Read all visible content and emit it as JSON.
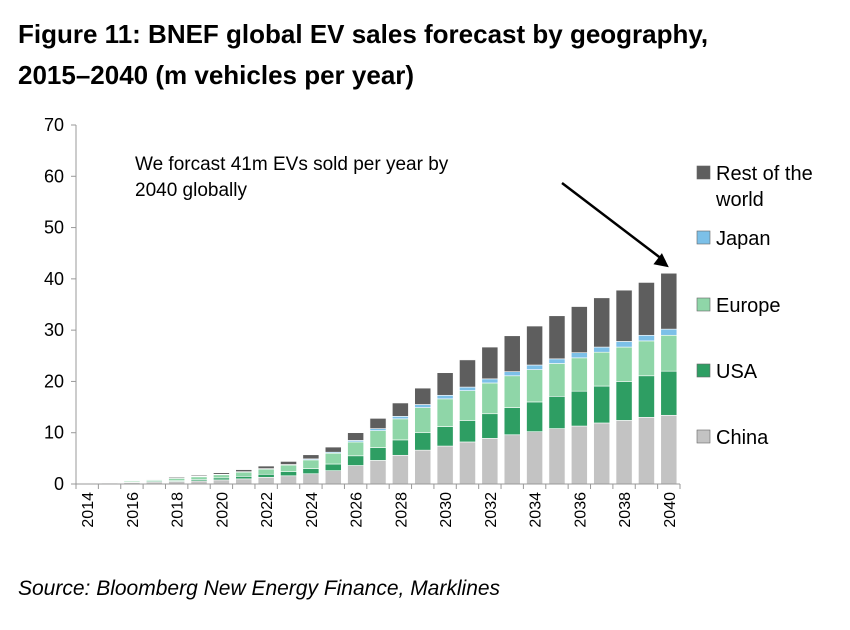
{
  "title_line1": "Figure 11: BNEF global EV sales forecast by geography,",
  "title_line2": "2015–2040 (m vehicles per year)",
  "source": "Source: Bloomberg New Energy Finance, Marklines",
  "chart_data": {
    "type": "bar",
    "stacked": true,
    "title": "Figure 11: BNEF global EV sales forecast by geography, 2015–2040 (m vehicles per year)",
    "categories": [
      "2014",
      "2015",
      "2016",
      "2017",
      "2018",
      "2019",
      "2020",
      "2021",
      "2022",
      "2023",
      "2024",
      "2025",
      "2026",
      "2027",
      "2028",
      "2029",
      "2030",
      "2031",
      "2032",
      "2033",
      "2034",
      "2035",
      "2036",
      "2037",
      "2038",
      "2039",
      "2040"
    ],
    "x_tick_labels": [
      "2014",
      "2016",
      "2018",
      "2020",
      "2022",
      "2024",
      "2026",
      "2028",
      "2030",
      "2032",
      "2034",
      "2036",
      "2038",
      "2040"
    ],
    "ylim": [
      0,
      70
    ],
    "y_ticks": [
      0,
      10,
      20,
      30,
      40,
      50,
      60,
      70
    ],
    "xlabel": "",
    "ylabel": "",
    "grid": false,
    "legend_position": "right",
    "series": [
      {
        "name": "China",
        "color": "#c3c3c3",
        "values": [
          0.1,
          0.2,
          0.3,
          0.4,
          0.5,
          0.6,
          0.8,
          1.0,
          1.3,
          1.6,
          2.0,
          2.6,
          3.6,
          4.6,
          5.6,
          6.6,
          7.4,
          8.2,
          8.9,
          9.6,
          10.2,
          10.8,
          11.3,
          11.9,
          12.4,
          13.0,
          13.4
        ]
      },
      {
        "name": "USA",
        "color": "#2e9e63",
        "values": [
          0.1,
          0.1,
          0.1,
          0.2,
          0.2,
          0.3,
          0.4,
          0.5,
          0.6,
          0.8,
          1.0,
          1.3,
          1.9,
          2.5,
          3.0,
          3.4,
          3.8,
          4.2,
          4.8,
          5.3,
          5.8,
          6.3,
          6.8,
          7.2,
          7.6,
          8.1,
          8.6
        ]
      },
      {
        "name": "Europe",
        "color": "#8fd6a8",
        "values": [
          0.1,
          0.1,
          0.2,
          0.2,
          0.4,
          0.5,
          0.6,
          0.8,
          1.0,
          1.3,
          1.7,
          2.1,
          2.7,
          3.3,
          4.1,
          4.9,
          5.4,
          5.8,
          6.0,
          6.2,
          6.3,
          6.4,
          6.5,
          6.6,
          6.7,
          6.8,
          7.0
        ]
      },
      {
        "name": "Japan",
        "color": "#7cc0e8",
        "values": [
          0.0,
          0.0,
          0.0,
          0.0,
          0.0,
          0.1,
          0.1,
          0.1,
          0.1,
          0.1,
          0.2,
          0.2,
          0.3,
          0.4,
          0.5,
          0.6,
          0.7,
          0.7,
          0.8,
          0.8,
          0.9,
          0.9,
          1.0,
          1.0,
          1.1,
          1.1,
          1.2
        ]
      },
      {
        "name": "Rest of the world",
        "color": "#5e5e5e",
        "values": [
          0.0,
          0.0,
          0.0,
          0.1,
          0.2,
          0.2,
          0.3,
          0.4,
          0.5,
          0.6,
          0.8,
          1.0,
          1.5,
          2.0,
          2.6,
          3.2,
          4.4,
          5.3,
          6.2,
          7.0,
          7.6,
          8.4,
          9.0,
          9.6,
          10.0,
          10.3,
          10.9
        ]
      }
    ],
    "annotation": {
      "line1": "We forcast 41m EVs sold per year by",
      "line2": "2040 globally",
      "points_to": "2040"
    }
  }
}
